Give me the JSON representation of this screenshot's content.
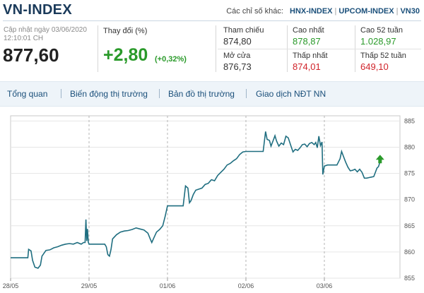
{
  "header": {
    "title": "VN-INDEX",
    "other_label": "Các chỉ số khác:",
    "links": [
      "HNX-INDEX",
      "UPCOM-INDEX",
      "VN30"
    ]
  },
  "summary": {
    "updated_label": "Cập nhật ngày 03/06/2020",
    "updated_time": "12:10:01 CH",
    "price": "877,60",
    "change_label": "Thay đổi (%)",
    "change_value": "+2,80",
    "change_pct": "(+0,32%)"
  },
  "stats": {
    "ref_label": "Tham chiếu",
    "ref_value": "874,80",
    "open_label": "Mở cửa",
    "open_value": "876,73",
    "high_label": "Cao nhất",
    "high_value": "878,87",
    "low_label": "Thấp nhất",
    "low_value": "874,01",
    "high52_label": "Cao 52 tuần",
    "high52_value": "1.028,97",
    "low52_label": "Thấp 52 tuần",
    "low52_value": "649,10"
  },
  "tabs": [
    "Tổng quan",
    "Biến động thị trường",
    "Bản đồ thị trường",
    "Giao dịch NĐT NN"
  ],
  "colors": {
    "line": "#1f6e80",
    "up": "#2a9a2a",
    "down": "#d0232a",
    "grid": "#c8c8c8"
  },
  "chart_data": {
    "type": "line",
    "x_labels": [
      "28/05",
      "29/05",
      "01/06",
      "02/06",
      "03/06"
    ],
    "y_ticks": [
      855,
      860,
      865,
      870,
      875,
      880,
      885
    ],
    "ylim": [
      855,
      886
    ],
    "series": [
      {
        "values": [
          [
            0,
            858.9
          ],
          [
            0.05,
            858.9
          ],
          [
            0.1,
            858.9
          ],
          [
            0.22,
            858.9
          ],
          [
            0.23,
            860.5
          ],
          [
            0.26,
            860.2
          ],
          [
            0.28,
            858.4
          ],
          [
            0.31,
            857.1
          ],
          [
            0.35,
            856.9
          ],
          [
            0.38,
            857.5
          ],
          [
            0.4,
            859.2
          ],
          [
            0.45,
            860.3
          ],
          [
            0.5,
            860.4
          ],
          [
            0.55,
            860.8
          ],
          [
            0.6,
            861.0
          ],
          [
            0.65,
            861.3
          ],
          [
            0.7,
            861.5
          ],
          [
            0.75,
            861.6
          ],
          [
            0.8,
            861.5
          ],
          [
            0.85,
            861.8
          ],
          [
            0.9,
            861.5
          ],
          [
            0.93,
            861.8
          ],
          [
            0.95,
            861.8
          ],
          [
            0.96,
            866.2
          ],
          [
            0.97,
            862.1
          ],
          [
            0.98,
            864.4
          ],
          [
            0.99,
            861.9
          ],
          [
            1.0,
            861.5
          ],
          [
            1.05,
            861.5
          ],
          [
            1.1,
            861.5
          ],
          [
            1.15,
            861.5
          ],
          [
            1.2,
            861.5
          ],
          [
            1.22,
            861.0
          ],
          [
            1.24,
            859.5
          ],
          [
            1.26,
            859.2
          ],
          [
            1.28,
            860.5
          ],
          [
            1.3,
            862.5
          ],
          [
            1.35,
            863.3
          ],
          [
            1.4,
            863.8
          ],
          [
            1.45,
            864.0
          ],
          [
            1.5,
            864.1
          ],
          [
            1.55,
            864.3
          ],
          [
            1.6,
            864.6
          ],
          [
            1.65,
            864.4
          ],
          [
            1.7,
            864.2
          ],
          [
            1.75,
            863.6
          ],
          [
            1.78,
            862.5
          ],
          [
            1.8,
            861.8
          ],
          [
            1.83,
            862.8
          ],
          [
            1.86,
            863.8
          ],
          [
            1.9,
            864.3
          ],
          [
            1.94,
            865.0
          ],
          [
            1.97,
            866.8
          ],
          [
            2.0,
            868.8
          ],
          [
            2.05,
            868.8
          ],
          [
            2.1,
            868.8
          ],
          [
            2.15,
            868.8
          ],
          [
            2.2,
            868.8
          ],
          [
            2.23,
            872.6
          ],
          [
            2.26,
            872.2
          ],
          [
            2.28,
            869.4
          ],
          [
            2.3,
            869.8
          ],
          [
            2.33,
            871.0
          ],
          [
            2.36,
            871.8
          ],
          [
            2.4,
            872.0
          ],
          [
            2.44,
            872.2
          ],
          [
            2.48,
            872.9
          ],
          [
            2.52,
            873.1
          ],
          [
            2.56,
            873.8
          ],
          [
            2.6,
            873.6
          ],
          [
            2.64,
            874.6
          ],
          [
            2.68,
            875.2
          ],
          [
            2.72,
            875.8
          ],
          [
            2.76,
            876.6
          ],
          [
            2.8,
            876.9
          ],
          [
            2.84,
            877.4
          ],
          [
            2.88,
            877.8
          ],
          [
            2.92,
            878.6
          ],
          [
            2.96,
            879.1
          ],
          [
            3.0,
            879.2
          ],
          [
            3.05,
            879.2
          ],
          [
            3.1,
            879.2
          ],
          [
            3.15,
            879.2
          ],
          [
            3.2,
            879.2
          ],
          [
            3.22,
            879.2
          ],
          [
            3.25,
            883.0
          ],
          [
            3.27,
            881.5
          ],
          [
            3.3,
            881.3
          ],
          [
            3.32,
            880.2
          ],
          [
            3.35,
            881.4
          ],
          [
            3.37,
            882.2
          ],
          [
            3.39,
            881.2
          ],
          [
            3.42,
            880.2
          ],
          [
            3.45,
            880.8
          ],
          [
            3.48,
            880.5
          ],
          [
            3.51,
            882.1
          ],
          [
            3.54,
            881.8
          ],
          [
            3.57,
            880.4
          ],
          [
            3.6,
            879.1
          ],
          [
            3.63,
            879.6
          ],
          [
            3.66,
            879.4
          ],
          [
            3.69,
            879.9
          ],
          [
            3.72,
            880.5
          ],
          [
            3.75,
            880.6
          ],
          [
            3.78,
            880.1
          ],
          [
            3.81,
            880.7
          ],
          [
            3.84,
            880.9
          ],
          [
            3.87,
            880.5
          ],
          [
            3.89,
            880.9
          ],
          [
            3.91,
            879.9
          ],
          [
            3.93,
            882.1
          ],
          [
            3.95,
            880.3
          ],
          [
            3.97,
            881.0
          ],
          [
            3.98,
            874.8
          ],
          [
            4.0,
            876.4
          ],
          [
            4.04,
            876.6
          ],
          [
            4.08,
            876.6
          ],
          [
            4.12,
            876.6
          ],
          [
            4.16,
            876.6
          ],
          [
            4.18,
            877.2
          ],
          [
            4.2,
            877.8
          ],
          [
            4.22,
            879.2
          ],
          [
            4.24,
            878.4
          ],
          [
            4.27,
            877.2
          ],
          [
            4.3,
            876.2
          ],
          [
            4.33,
            875.5
          ],
          [
            4.36,
            875.6
          ],
          [
            4.39,
            875.8
          ],
          [
            4.42,
            875.3
          ],
          [
            4.45,
            875.8
          ],
          [
            4.48,
            875.2
          ],
          [
            4.51,
            874.1
          ],
          [
            4.54,
            874.1
          ],
          [
            4.57,
            874.2
          ],
          [
            4.6,
            874.3
          ],
          [
            4.63,
            874.4
          ],
          [
            4.65,
            875.2
          ],
          [
            4.67,
            876.0
          ],
          [
            4.69,
            876.3
          ],
          [
            4.71,
            877.2
          ]
        ]
      }
    ],
    "last_marker": "up-arrow"
  }
}
